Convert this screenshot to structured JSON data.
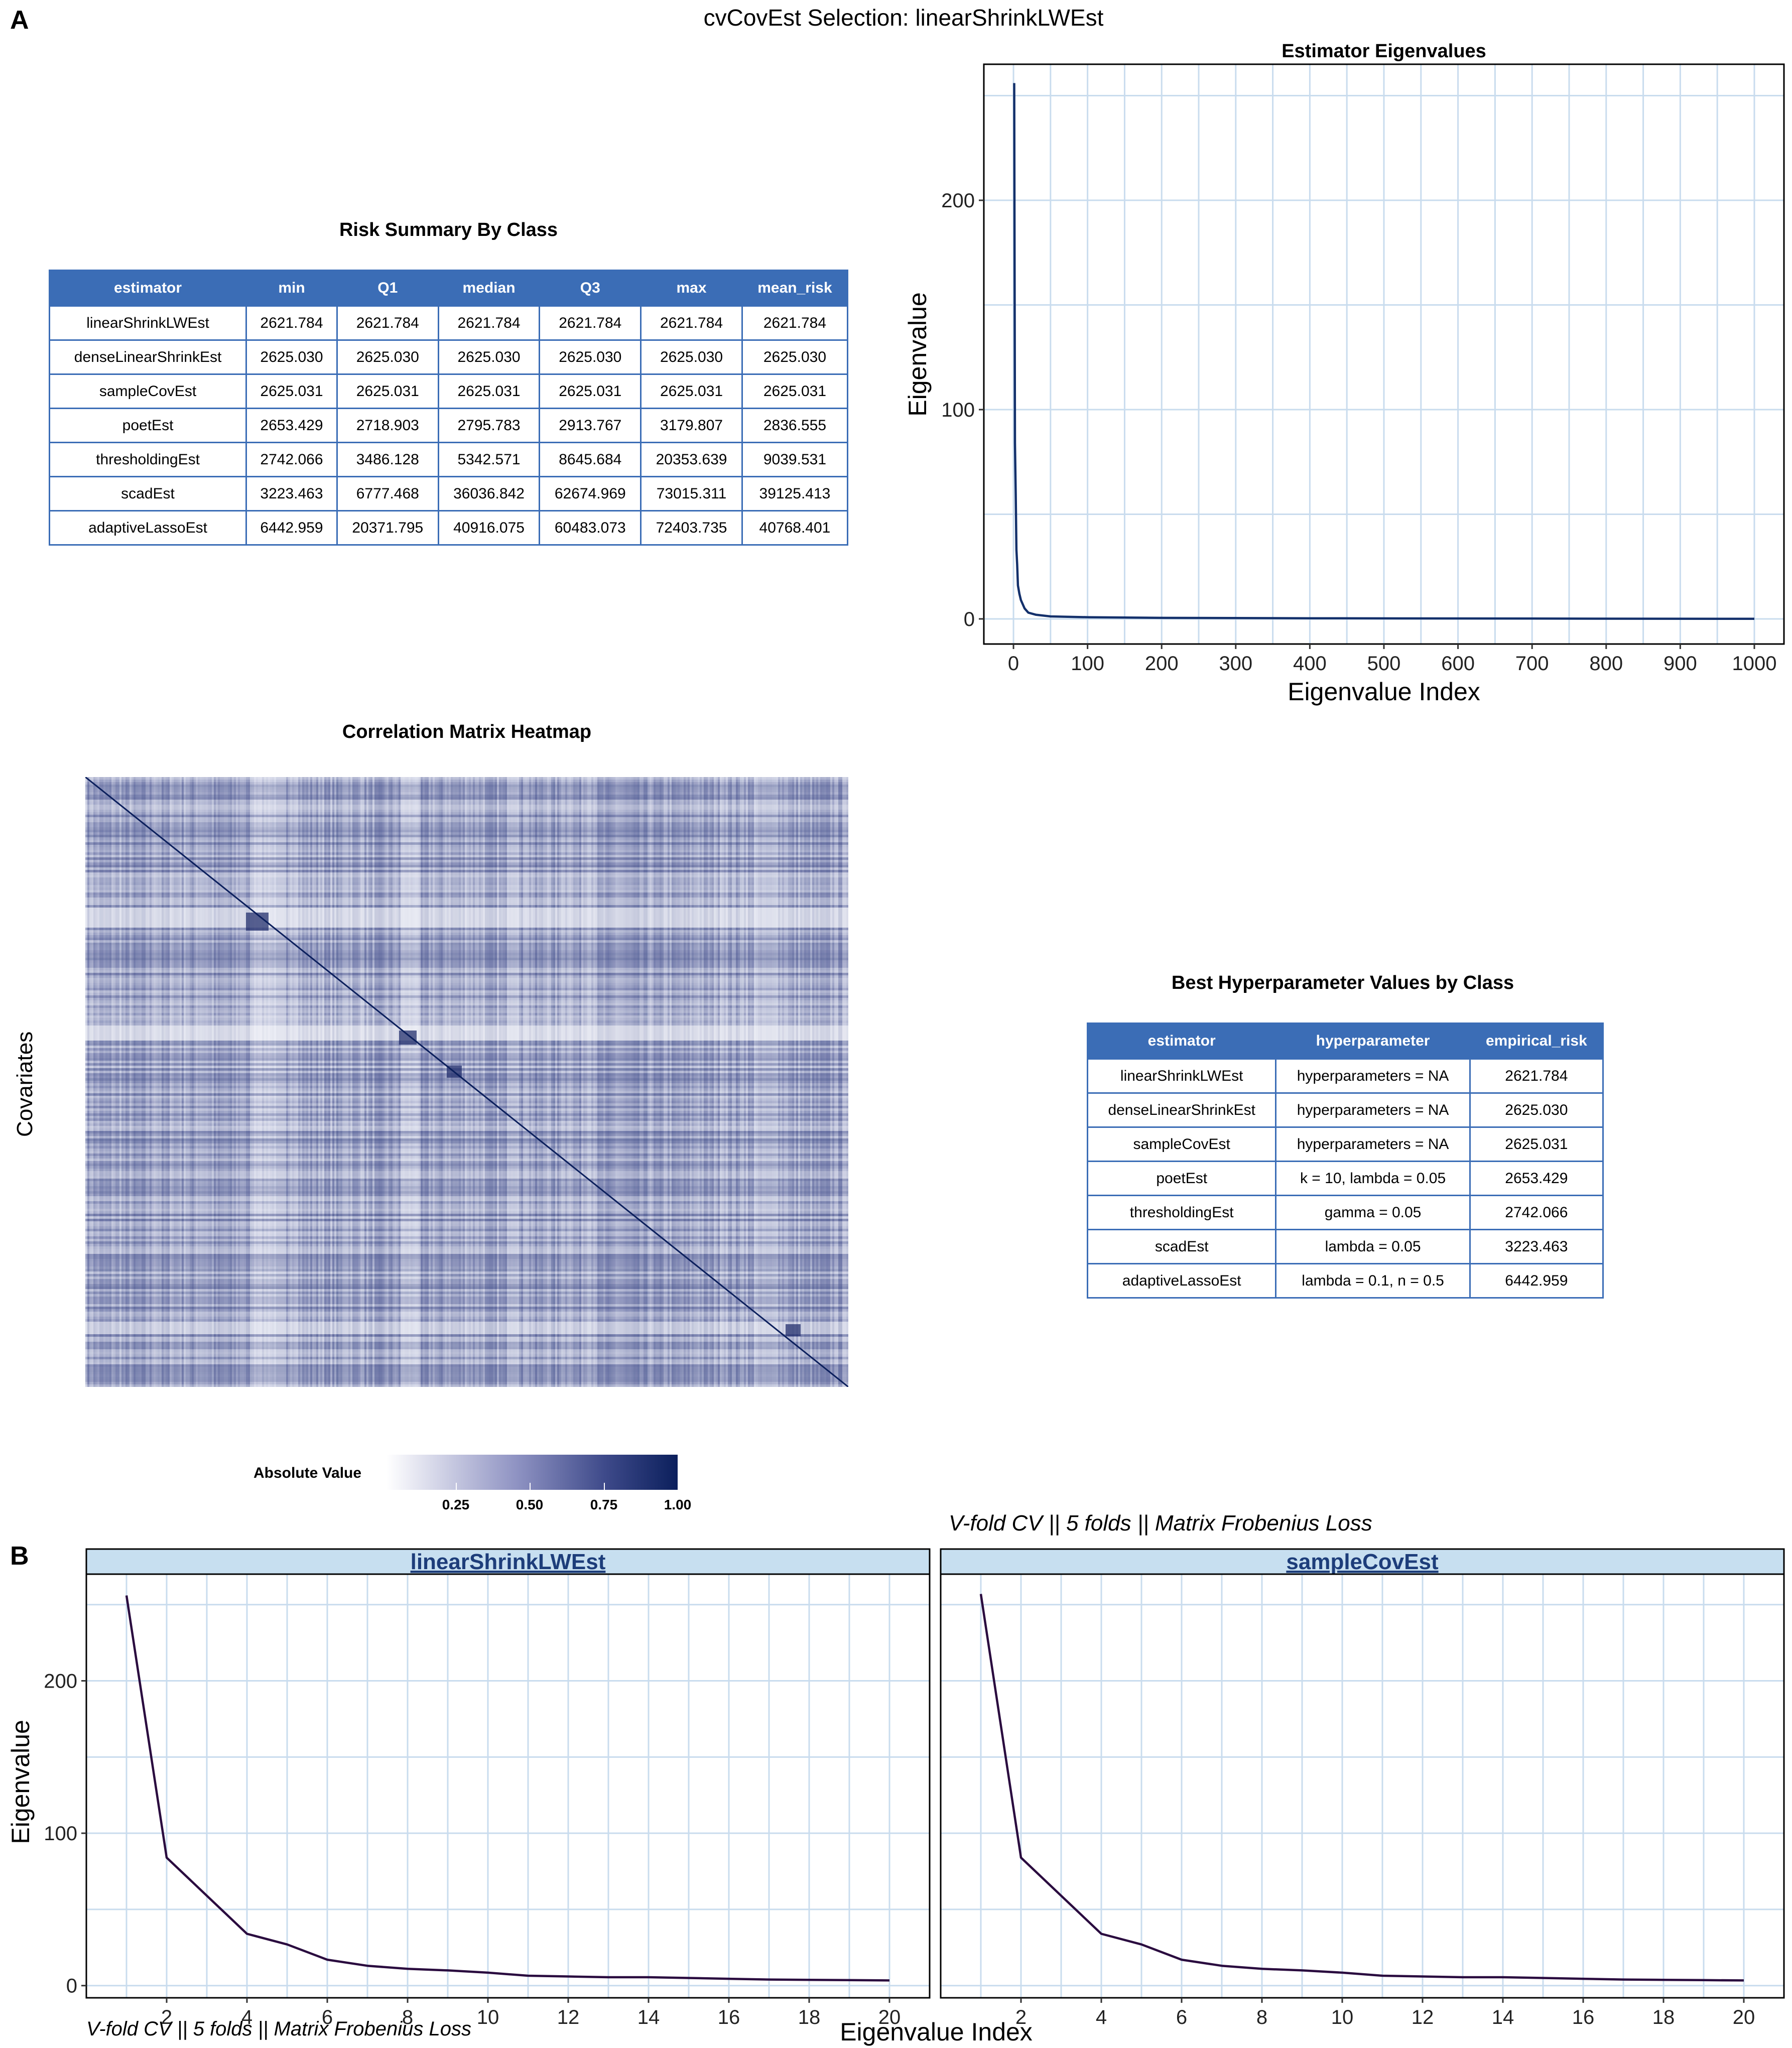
{
  "panel_labels": {
    "a": "A",
    "b": "B"
  },
  "main_title": "cvCovEst Selection: linearShrinkLWEst",
  "risk_table": {
    "title": "Risk Summary By Class",
    "headers": [
      "estimator",
      "min",
      "Q1",
      "median",
      "Q3",
      "max",
      "mean_risk"
    ],
    "rows": [
      [
        "linearShrinkLWEst",
        "2621.784",
        "2621.784",
        "2621.784",
        "2621.784",
        "2621.784",
        "2621.784"
      ],
      [
        "denseLinearShrinkEst",
        "2625.030",
        "2625.030",
        "2625.030",
        "2625.030",
        "2625.030",
        "2625.030"
      ],
      [
        "sampleCovEst",
        "2625.031",
        "2625.031",
        "2625.031",
        "2625.031",
        "2625.031",
        "2625.031"
      ],
      [
        "poetEst",
        "2653.429",
        "2718.903",
        "2795.783",
        "2913.767",
        "3179.807",
        "2836.555"
      ],
      [
        "thresholdingEst",
        "2742.066",
        "3486.128",
        "5342.571",
        "8645.684",
        "20353.639",
        "9039.531"
      ],
      [
        "scadEst",
        "3223.463",
        "6777.468",
        "36036.842",
        "62674.969",
        "73015.311",
        "39125.413"
      ],
      [
        "adaptiveLassoEst",
        "6442.959",
        "20371.795",
        "40916.075",
        "60483.073",
        "72403.735",
        "40768.401"
      ]
    ]
  },
  "hyper_table": {
    "title": "Best Hyperparameter Values by Class",
    "headers": [
      "estimator",
      "hyperparameter",
      "empirical_risk"
    ],
    "rows": [
      [
        "linearShrinkLWEst",
        "hyperparameters = NA",
        "2621.784"
      ],
      [
        "denseLinearShrinkEst",
        "hyperparameters = NA",
        "2625.030"
      ],
      [
        "sampleCovEst",
        "hyperparameters = NA",
        "2625.031"
      ],
      [
        "poetEst",
        "k = 10, lambda = 0.05",
        "2653.429"
      ],
      [
        "thresholdingEst",
        "gamma = 0.05",
        "2742.066"
      ],
      [
        "scadEst",
        "lambda = 0.05",
        "3223.463"
      ],
      [
        "adaptiveLassoEst",
        "lambda = 0.1, n = 0.5",
        "6442.959"
      ]
    ]
  },
  "heatmap": {
    "title": "Correlation Matrix Heatmap",
    "ylabel": "Covariates",
    "legend_title": "Absolute Value",
    "legend_ticks": [
      "0.25",
      "0.50",
      "0.75",
      "1.00"
    ],
    "color_low": "#ffffff",
    "color_high": "#0b1f5c"
  },
  "cv_note": "V-fold CV  ||  5 folds  ||  Matrix Frobenius Loss",
  "bottom_note": "V-fold CV  ||  5 folds  ||  Matrix Frobenius Loss",
  "colors": {
    "table_header": "#3b6db6",
    "grid": "#c9dcee",
    "strip_bg": "#c7dff0",
    "strip_text": "#1d3d7a",
    "line_top": "#13306b",
    "line_bottom": "#2a0b3f"
  },
  "chart_data": [
    {
      "type": "line",
      "title": "Estimator Eigenvalues",
      "xlabel": "Eigenvalue Index",
      "ylabel": "Eigenvalue",
      "xlim": [
        -40,
        1040
      ],
      "ylim": [
        -12,
        265
      ],
      "xticks": [
        0,
        100,
        200,
        300,
        400,
        500,
        600,
        700,
        800,
        900,
        1000
      ],
      "yticks": [
        0,
        100,
        200
      ],
      "x": [
        1,
        2,
        3,
        4,
        5,
        6,
        8,
        10,
        15,
        20,
        30,
        50,
        100,
        200,
        400,
        700,
        1000
      ],
      "y": [
        256,
        84,
        60,
        33,
        26,
        16,
        12,
        9,
        5,
        3,
        2,
        1.2,
        0.8,
        0.5,
        0.3,
        0.15,
        0.05
      ]
    },
    {
      "type": "line",
      "title": "linearShrinkLWEst",
      "xlabel": "Eigenvalue Index",
      "ylabel": "Eigenvalue",
      "xlim": [
        0,
        21
      ],
      "ylim": [
        -8,
        270
      ],
      "xticks": [
        2,
        4,
        6,
        8,
        10,
        12,
        14,
        16,
        18,
        20
      ],
      "yticks": [
        0,
        100,
        200
      ],
      "x": [
        1,
        2,
        3,
        4,
        5,
        6,
        7,
        8,
        9,
        10,
        11,
        12,
        13,
        14,
        15,
        16,
        17,
        18,
        19,
        20
      ],
      "y": [
        256,
        84,
        59,
        34,
        27,
        17,
        13,
        11,
        10,
        8.5,
        6.5,
        6,
        5.5,
        5.5,
        5,
        4.5,
        4,
        3.8,
        3.6,
        3.4
      ]
    },
    {
      "type": "line",
      "title": "sampleCovEst",
      "xlabel": "Eigenvalue Index",
      "ylabel": "Eigenvalue",
      "xlim": [
        0,
        21
      ],
      "ylim": [
        -8,
        270
      ],
      "xticks": [
        2,
        4,
        6,
        8,
        10,
        12,
        14,
        16,
        18,
        20
      ],
      "yticks": [
        0,
        100,
        200
      ],
      "x": [
        1,
        2,
        3,
        4,
        5,
        6,
        7,
        8,
        9,
        10,
        11,
        12,
        13,
        14,
        15,
        16,
        17,
        18,
        19,
        20
      ],
      "y": [
        257,
        84,
        59,
        34,
        27,
        17,
        13,
        11,
        10,
        8.5,
        6.5,
        6,
        5.5,
        5.5,
        5,
        4.5,
        4,
        3.8,
        3.6,
        3.4
      ]
    }
  ]
}
